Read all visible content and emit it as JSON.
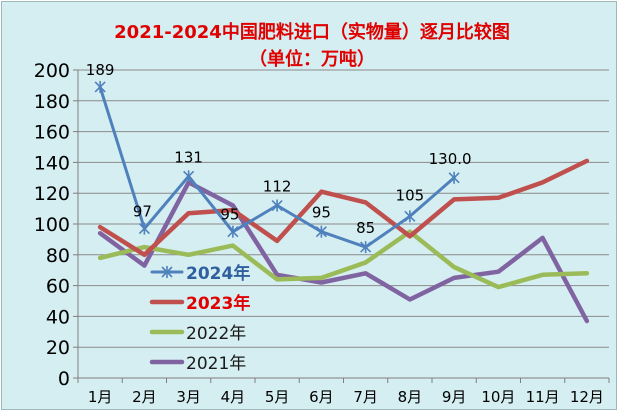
{
  "chart_data": {
    "type": "line",
    "title": "2021-2024中国肥料进口（实物量）逐月比较图",
    "subtitle": "（单位：万吨）",
    "xlabel": "",
    "ylabel": "",
    "categories": [
      "1月",
      "2月",
      "3月",
      "4月",
      "5月",
      "6月",
      "7月",
      "8月",
      "9月",
      "10月",
      "11月",
      "12月"
    ],
    "ylim": [
      0,
      200
    ],
    "yticks": [
      0,
      20,
      40,
      60,
      80,
      100,
      120,
      140,
      160,
      180,
      200
    ],
    "grid": true,
    "legend_position": "left-bottom",
    "series": [
      {
        "name": "2024年",
        "color": "#4f81bd",
        "marker": "star",
        "values": [
          189,
          97,
          131,
          95,
          112,
          95,
          85,
          105,
          130.0,
          null,
          null,
          null
        ],
        "labels": [
          "189",
          "97",
          "131",
          "95",
          "112",
          "95",
          "85",
          "105",
          "130.0",
          null,
          null,
          null
        ],
        "legend_color": "#2f5f9e"
      },
      {
        "name": "2023年",
        "color": "#c0504d",
        "marker": "none",
        "values": [
          98,
          80,
          107,
          109,
          89,
          121,
          114,
          92,
          116,
          117,
          127,
          141
        ],
        "legend_color": "#e00000"
      },
      {
        "name": "2022年",
        "color": "#9bbb59",
        "marker": "none",
        "values": [
          78,
          85,
          80,
          86,
          64,
          65,
          75,
          95,
          72,
          59,
          67,
          68
        ],
        "legend_color": "#1a1a1a"
      },
      {
        "name": "2021年",
        "color": "#8064a2",
        "marker": "none",
        "values": [
          94,
          73,
          127,
          112,
          67,
          62,
          68,
          51,
          65,
          69,
          91,
          37
        ],
        "legend_color": "#1a1a1a"
      }
    ]
  }
}
